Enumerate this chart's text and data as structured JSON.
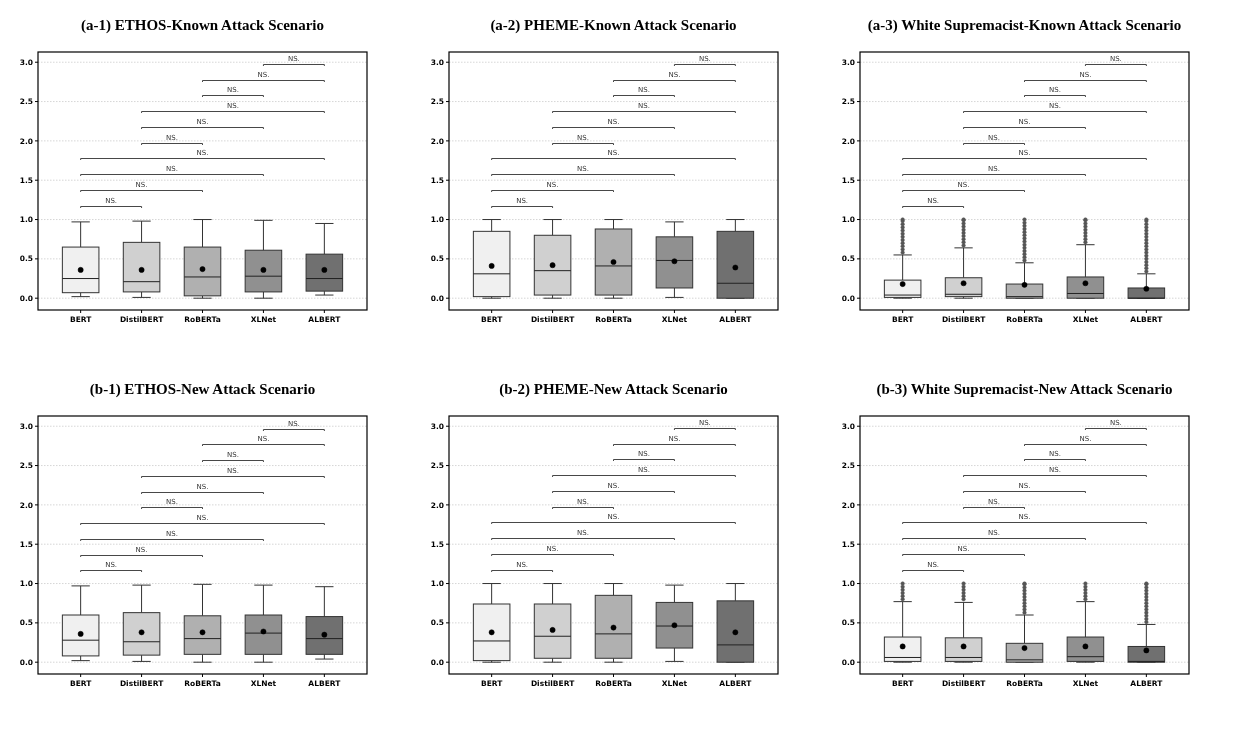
{
  "chart_data": [
    {
      "type": "box",
      "title": "(a-1) ETHOS-Known Attack Scenario",
      "categories": [
        "BERT",
        "DistilBERT",
        "RoBERTa",
        "XLNet",
        "ALBERT"
      ],
      "colors": [
        "#f0f0f0",
        "#d0d0d0",
        "#b0b0b0",
        "#909090",
        "#707070"
      ],
      "ylim": [
        -0.15,
        3.13
      ],
      "yticks": [
        {
          "value": 0,
          "label": "0.0"
        },
        {
          "value": 0.5,
          "label": "0.5"
        },
        {
          "value": 1,
          "label": "1.0"
        },
        {
          "value": 1.5,
          "label": "1.5"
        },
        {
          "value": 2,
          "label": "2.0"
        },
        {
          "value": 2.5,
          "label": "2.5"
        },
        {
          "value": 3,
          "label": "3.0"
        }
      ],
      "grid": "y",
      "boxes": [
        {
          "low": 0.02,
          "q1": 0.07,
          "median": 0.25,
          "q3": 0.65,
          "high": 0.97,
          "mean": 0.36
        },
        {
          "low": 0.01,
          "q1": 0.08,
          "median": 0.21,
          "q3": 0.71,
          "high": 0.98,
          "mean": 0.36
        },
        {
          "low": 0,
          "q1": 0.03,
          "median": 0.27,
          "q3": 0.65,
          "high": 1.0,
          "mean": 0.37
        },
        {
          "low": 0,
          "q1": 0.08,
          "median": 0.28,
          "q3": 0.61,
          "high": 0.99,
          "mean": 0.36
        },
        {
          "low": 0.04,
          "q1": 0.09,
          "median": 0.25,
          "q3": 0.56,
          "high": 0.95,
          "mean": 0.36
        }
      ],
      "annotations": [
        "NS.",
        "NS.",
        "NS.",
        "NS.",
        "NS.",
        "NS.",
        "NS.",
        "NS.",
        "NS.",
        "NS."
      ]
    },
    {
      "type": "box",
      "title": "(a-2) PHEME-Known Attack Scenario",
      "categories": [
        "BERT",
        "DistilBERT",
        "RoBERTa",
        "XLNet",
        "ALBERT"
      ],
      "colors": [
        "#f0f0f0",
        "#d0d0d0",
        "#b0b0b0",
        "#909090",
        "#707070"
      ],
      "ylim": [
        -0.15,
        3.13
      ],
      "yticks": [
        {
          "value": 0,
          "label": "0.0"
        },
        {
          "value": 0.5,
          "label": "0.5"
        },
        {
          "value": 1,
          "label": "1.0"
        },
        {
          "value": 1.5,
          "label": "1.5"
        },
        {
          "value": 2,
          "label": "2.0"
        },
        {
          "value": 2.5,
          "label": "2.5"
        },
        {
          "value": 3,
          "label": "3.0"
        }
      ],
      "grid": "y",
      "boxes": [
        {
          "low": 0,
          "q1": 0.02,
          "median": 0.31,
          "q3": 0.85,
          "high": 1.0,
          "mean": 0.41
        },
        {
          "low": 0,
          "q1": 0.04,
          "median": 0.35,
          "q3": 0.8,
          "high": 1.0,
          "mean": 0.42
        },
        {
          "low": 0,
          "q1": 0.04,
          "median": 0.41,
          "q3": 0.88,
          "high": 1.0,
          "mean": 0.46
        },
        {
          "low": 0.01,
          "q1": 0.13,
          "median": 0.48,
          "q3": 0.78,
          "high": 0.97,
          "mean": 0.47
        },
        {
          "low": 0,
          "q1": 0,
          "median": 0.19,
          "q3": 0.85,
          "high": 1.0,
          "mean": 0.39
        }
      ],
      "annotations": [
        "NS.",
        "NS.",
        "NS.",
        "NS.",
        "NS.",
        "NS.",
        "NS.",
        "NS.",
        "NS.",
        "NS."
      ]
    },
    {
      "type": "box",
      "title": "(a-3) White Supremacist-Known Attack Scenario",
      "categories": [
        "BERT",
        "DistilBERT",
        "RoBERTa",
        "XLNet",
        "ALBERT"
      ],
      "colors": [
        "#f0f0f0",
        "#d0d0d0",
        "#b0b0b0",
        "#909090",
        "#707070"
      ],
      "ylim": [
        -0.15,
        3.13
      ],
      "yticks": [
        {
          "value": 0,
          "label": "0.0"
        },
        {
          "value": 0.5,
          "label": "0.5"
        },
        {
          "value": 1,
          "label": "1.0"
        },
        {
          "value": 1.5,
          "label": "1.5"
        },
        {
          "value": 2,
          "label": "2.0"
        },
        {
          "value": 2.5,
          "label": "2.5"
        },
        {
          "value": 3,
          "label": "3.0"
        }
      ],
      "grid": "y",
      "boxes": [
        {
          "low": 0,
          "q1": 0.01,
          "median": 0.04,
          "q3": 0.23,
          "high": 0.55,
          "mean": 0.18,
          "outliers": [
            0.58,
            0.62,
            0.66,
            0.7,
            0.74,
            0.78,
            0.82,
            0.86,
            0.9,
            0.94,
            0.98,
            1.0
          ]
        },
        {
          "low": 0,
          "q1": 0.02,
          "median": 0.05,
          "q3": 0.26,
          "high": 0.64,
          "mean": 0.19,
          "outliers": [
            0.67,
            0.71,
            0.75,
            0.79,
            0.83,
            0.87,
            0.91,
            0.95,
            0.99,
            1.0
          ]
        },
        {
          "low": 0,
          "q1": 0,
          "median": 0.02,
          "q3": 0.18,
          "high": 0.45,
          "mean": 0.17,
          "outliers": [
            0.48,
            0.52,
            0.56,
            0.6,
            0.64,
            0.68,
            0.72,
            0.76,
            0.8,
            0.84,
            0.88,
            0.92,
            0.96,
            1.0
          ]
        },
        {
          "low": 0,
          "q1": 0,
          "median": 0.06,
          "q3": 0.27,
          "high": 0.68,
          "mean": 0.19,
          "outliers": [
            0.71,
            0.75,
            0.79,
            0.83,
            0.87,
            0.91,
            0.95,
            0.99,
            1.0
          ]
        },
        {
          "low": 0,
          "q1": 0,
          "median": 0,
          "q3": 0.13,
          "high": 0.31,
          "mean": 0.12,
          "outliers": [
            0.34,
            0.38,
            0.42,
            0.46,
            0.5,
            0.54,
            0.58,
            0.62,
            0.66,
            0.7,
            0.74,
            0.78,
            0.82,
            0.86,
            0.9,
            0.94,
            0.98,
            1.0
          ]
        }
      ],
      "annotations": [
        "NS.",
        "NS.",
        "NS.",
        "NS.",
        "NS.",
        "NS.",
        "NS.",
        "NS.",
        "NS.",
        "NS."
      ]
    },
    {
      "type": "box",
      "title": "(b-1) ETHOS-New Attack Scenario",
      "categories": [
        "BERT",
        "DistilBERT",
        "RoBERTa",
        "XLNet",
        "ALBERT"
      ],
      "colors": [
        "#f0f0f0",
        "#d0d0d0",
        "#b0b0b0",
        "#909090",
        "#707070"
      ],
      "ylim": [
        -0.15,
        3.13
      ],
      "yticks": [
        {
          "value": 0,
          "label": "0.0"
        },
        {
          "value": 0.5,
          "label": "0.5"
        },
        {
          "value": 1,
          "label": "1.0"
        },
        {
          "value": 1.5,
          "label": "1.5"
        },
        {
          "value": 2,
          "label": "2.0"
        },
        {
          "value": 2.5,
          "label": "2.5"
        },
        {
          "value": 3,
          "label": "3.0"
        }
      ],
      "grid": "y",
      "boxes": [
        {
          "low": 0.02,
          "q1": 0.08,
          "median": 0.28,
          "q3": 0.6,
          "high": 0.97,
          "mean": 0.36
        },
        {
          "low": 0.01,
          "q1": 0.09,
          "median": 0.26,
          "q3": 0.63,
          "high": 0.98,
          "mean": 0.38
        },
        {
          "low": 0,
          "q1": 0.1,
          "median": 0.3,
          "q3": 0.59,
          "high": 0.99,
          "mean": 0.38
        },
        {
          "low": 0,
          "q1": 0.1,
          "median": 0.37,
          "q3": 0.6,
          "high": 0.98,
          "mean": 0.39
        },
        {
          "low": 0.04,
          "q1": 0.1,
          "median": 0.3,
          "q3": 0.58,
          "high": 0.96,
          "mean": 0.35
        }
      ],
      "annotations": [
        "NS.",
        "NS.",
        "NS.",
        "NS.",
        "NS.",
        "NS.",
        "NS.",
        "NS.",
        "NS.",
        "NS."
      ]
    },
    {
      "type": "box",
      "title": "(b-2) PHEME-New Attack Scenario",
      "categories": [
        "BERT",
        "DistilBERT",
        "RoBERTa",
        "XLNet",
        "ALBERT"
      ],
      "colors": [
        "#f0f0f0",
        "#d0d0d0",
        "#b0b0b0",
        "#909090",
        "#707070"
      ],
      "ylim": [
        -0.15,
        3.13
      ],
      "yticks": [
        {
          "value": 0,
          "label": "0.0"
        },
        {
          "value": 0.5,
          "label": "0.5"
        },
        {
          "value": 1,
          "label": "1.0"
        },
        {
          "value": 1.5,
          "label": "1.5"
        },
        {
          "value": 2,
          "label": "2.0"
        },
        {
          "value": 2.5,
          "label": "2.5"
        },
        {
          "value": 3,
          "label": "3.0"
        }
      ],
      "grid": "y",
      "boxes": [
        {
          "low": 0,
          "q1": 0.02,
          "median": 0.27,
          "q3": 0.74,
          "high": 1.0,
          "mean": 0.38
        },
        {
          "low": 0,
          "q1": 0.05,
          "median": 0.33,
          "q3": 0.74,
          "high": 1.0,
          "mean": 0.41
        },
        {
          "low": 0,
          "q1": 0.05,
          "median": 0.36,
          "q3": 0.85,
          "high": 1.0,
          "mean": 0.44
        },
        {
          "low": 0.01,
          "q1": 0.18,
          "median": 0.46,
          "q3": 0.76,
          "high": 0.98,
          "mean": 0.47
        },
        {
          "low": 0,
          "q1": 0,
          "median": 0.22,
          "q3": 0.78,
          "high": 1.0,
          "mean": 0.38
        }
      ],
      "annotations": [
        "NS.",
        "NS.",
        "NS.",
        "NS.",
        "NS.",
        "NS.",
        "NS.",
        "NS.",
        "NS.",
        "NS."
      ]
    },
    {
      "type": "box",
      "title": "(b-3) White Supremacist-New Attack Scenario",
      "categories": [
        "BERT",
        "DistilBERT",
        "RoBERTa",
        "XLNet",
        "ALBERT"
      ],
      "colors": [
        "#f0f0f0",
        "#d0d0d0",
        "#b0b0b0",
        "#909090",
        "#707070"
      ],
      "ylim": [
        -0.15,
        3.13
      ],
      "yticks": [
        {
          "value": 0,
          "label": "0.0"
        },
        {
          "value": 0.5,
          "label": "0.5"
        },
        {
          "value": 1,
          "label": "1.0"
        },
        {
          "value": 1.5,
          "label": "1.5"
        },
        {
          "value": 2,
          "label": "2.0"
        },
        {
          "value": 2.5,
          "label": "2.5"
        },
        {
          "value": 3,
          "label": "3.0"
        }
      ],
      "grid": "y",
      "boxes": [
        {
          "low": 0,
          "q1": 0.01,
          "median": 0.06,
          "q3": 0.32,
          "high": 0.77,
          "mean": 0.2,
          "outliers": [
            0.8,
            0.84,
            0.88,
            0.92,
            0.96,
            1.0
          ]
        },
        {
          "low": 0,
          "q1": 0.01,
          "median": 0.06,
          "q3": 0.31,
          "high": 0.76,
          "mean": 0.2,
          "outliers": [
            0.8,
            0.84,
            0.88,
            0.92,
            0.96,
            1.0
          ]
        },
        {
          "low": 0,
          "q1": 0,
          "median": 0.03,
          "q3": 0.24,
          "high": 0.6,
          "mean": 0.18,
          "outliers": [
            0.63,
            0.67,
            0.71,
            0.75,
            0.79,
            0.83,
            0.87,
            0.91,
            0.95,
            0.99,
            1.0
          ]
        },
        {
          "low": 0,
          "q1": 0.01,
          "median": 0.07,
          "q3": 0.32,
          "high": 0.77,
          "mean": 0.2,
          "outliers": [
            0.8,
            0.84,
            0.88,
            0.92,
            0.96,
            1.0
          ]
        },
        {
          "low": 0,
          "q1": 0,
          "median": 0.01,
          "q3": 0.2,
          "high": 0.48,
          "mean": 0.15,
          "outliers": [
            0.51,
            0.55,
            0.59,
            0.63,
            0.67,
            0.71,
            0.75,
            0.79,
            0.83,
            0.87,
            0.91,
            0.95,
            0.99,
            1.0
          ]
        }
      ],
      "annotations": [
        "NS.",
        "NS.",
        "NS.",
        "NS.",
        "NS.",
        "NS.",
        "NS.",
        "NS.",
        "NS.",
        "NS."
      ]
    }
  ]
}
